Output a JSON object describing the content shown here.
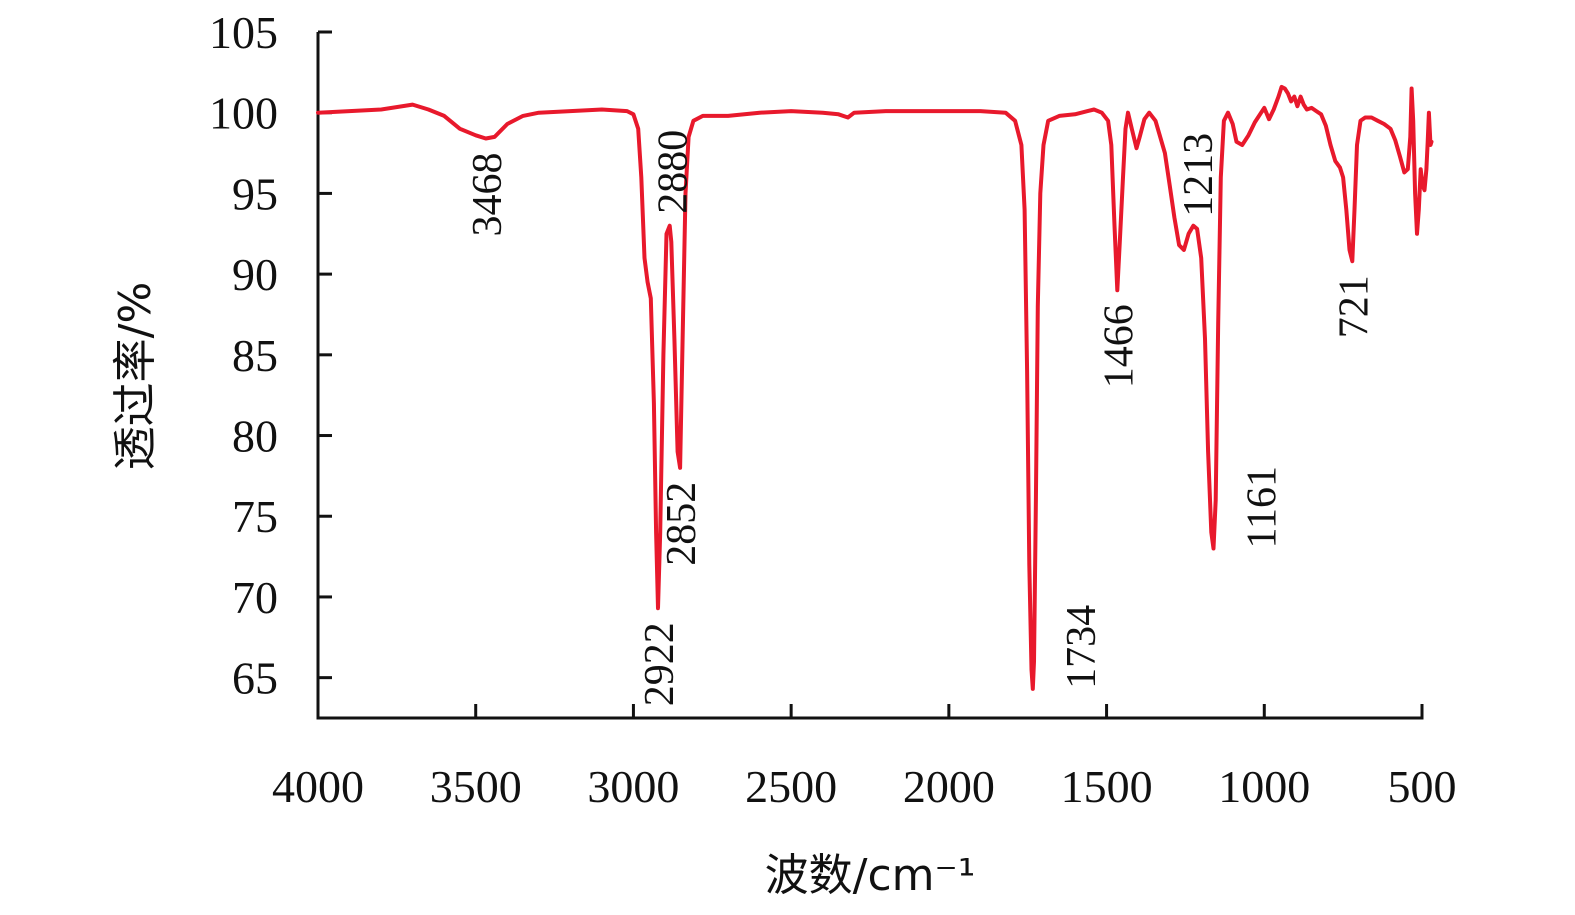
{
  "chart_data": {
    "type": "line",
    "xlabel": "波数/cm⁻¹",
    "ylabel": "透过率/%",
    "xlim": [
      4000,
      500
    ],
    "ylim": [
      62.5,
      105
    ],
    "x_reversed": true,
    "x_ticks": [
      4000,
      3500,
      3000,
      2500,
      2000,
      1500,
      1000,
      500
    ],
    "y_ticks": [
      65,
      70,
      75,
      80,
      85,
      90,
      95,
      100,
      105
    ],
    "grid": false,
    "series_color": "#e8192c",
    "series": [
      {
        "points": [
          [
            4000,
            100
          ],
          [
            3900,
            100.1
          ],
          [
            3800,
            100.2
          ],
          [
            3700,
            100.5
          ],
          [
            3650,
            100.2
          ],
          [
            3600,
            99.8
          ],
          [
            3550,
            99.0
          ],
          [
            3500,
            98.6
          ],
          [
            3468,
            98.4
          ],
          [
            3440,
            98.5
          ],
          [
            3400,
            99.3
          ],
          [
            3350,
            99.8
          ],
          [
            3300,
            100.0
          ],
          [
            3200,
            100.1
          ],
          [
            3100,
            100.2
          ],
          [
            3020,
            100.1
          ],
          [
            3000,
            99.9
          ],
          [
            2985,
            99.0
          ],
          [
            2975,
            96.0
          ],
          [
            2965,
            91.0
          ],
          [
            2955,
            89.5
          ],
          [
            2945,
            88.5
          ],
          [
            2935,
            82.0
          ],
          [
            2928,
            74.0
          ],
          [
            2922,
            69.3
          ],
          [
            2915,
            74.0
          ],
          [
            2905,
            85.0
          ],
          [
            2895,
            92.5
          ],
          [
            2885,
            93.0
          ],
          [
            2880,
            92.0
          ],
          [
            2870,
            86.0
          ],
          [
            2860,
            79.0
          ],
          [
            2852,
            78.0
          ],
          [
            2845,
            85.0
          ],
          [
            2835,
            95.0
          ],
          [
            2825,
            98.5
          ],
          [
            2810,
            99.5
          ],
          [
            2780,
            99.8
          ],
          [
            2700,
            99.8
          ],
          [
            2600,
            100.0
          ],
          [
            2500,
            100.1
          ],
          [
            2400,
            100.0
          ],
          [
            2350,
            99.9
          ],
          [
            2320,
            99.7
          ],
          [
            2300,
            100.0
          ],
          [
            2200,
            100.1
          ],
          [
            2100,
            100.1
          ],
          [
            2000,
            100.1
          ],
          [
            1900,
            100.1
          ],
          [
            1820,
            100.0
          ],
          [
            1790,
            99.5
          ],
          [
            1770,
            98.0
          ],
          [
            1760,
            94.0
          ],
          [
            1752,
            84.0
          ],
          [
            1745,
            72.0
          ],
          [
            1738,
            65.5
          ],
          [
            1734,
            64.3
          ],
          [
            1730,
            66.0
          ],
          [
            1724,
            76.0
          ],
          [
            1718,
            88.0
          ],
          [
            1710,
            95.0
          ],
          [
            1700,
            98.0
          ],
          [
            1685,
            99.5
          ],
          [
            1650,
            99.8
          ],
          [
            1600,
            99.9
          ],
          [
            1560,
            100.1
          ],
          [
            1540,
            100.2
          ],
          [
            1515,
            100.0
          ],
          [
            1495,
            99.5
          ],
          [
            1485,
            98.0
          ],
          [
            1475,
            93.0
          ],
          [
            1466,
            89.0
          ],
          [
            1458,
            92.0
          ],
          [
            1448,
            96.0
          ],
          [
            1440,
            99.0
          ],
          [
            1432,
            100.0
          ],
          [
            1420,
            99.0
          ],
          [
            1405,
            97.8
          ],
          [
            1395,
            98.5
          ],
          [
            1380,
            99.6
          ],
          [
            1365,
            100.0
          ],
          [
            1345,
            99.5
          ],
          [
            1330,
            98.5
          ],
          [
            1315,
            97.5
          ],
          [
            1300,
            95.5
          ],
          [
            1285,
            93.5
          ],
          [
            1270,
            91.8
          ],
          [
            1255,
            91.5
          ],
          [
            1240,
            92.5
          ],
          [
            1225,
            93.0
          ],
          [
            1213,
            92.8
          ],
          [
            1200,
            91.0
          ],
          [
            1188,
            86.0
          ],
          [
            1178,
            79.0
          ],
          [
            1168,
            74.0
          ],
          [
            1161,
            73.0
          ],
          [
            1154,
            76.0
          ],
          [
            1146,
            87.0
          ],
          [
            1138,
            96.0
          ],
          [
            1128,
            99.5
          ],
          [
            1115,
            100.0
          ],
          [
            1100,
            99.3
          ],
          [
            1088,
            98.2
          ],
          [
            1070,
            98.0
          ],
          [
            1050,
            98.6
          ],
          [
            1030,
            99.4
          ],
          [
            1010,
            100.0
          ],
          [
            1000,
            100.3
          ],
          [
            985,
            99.6
          ],
          [
            970,
            100.2
          ],
          [
            955,
            101.0
          ],
          [
            945,
            101.6
          ],
          [
            935,
            101.5
          ],
          [
            925,
            101.2
          ],
          [
            915,
            100.7
          ],
          [
            905,
            101.0
          ],
          [
            895,
            100.4
          ],
          [
            885,
            101.0
          ],
          [
            875,
            100.5
          ],
          [
            865,
            100.2
          ],
          [
            850,
            100.3
          ],
          [
            835,
            100.1
          ],
          [
            820,
            99.9
          ],
          [
            805,
            99.2
          ],
          [
            790,
            98.0
          ],
          [
            775,
            97.0
          ],
          [
            760,
            96.6
          ],
          [
            750,
            96.0
          ],
          [
            740,
            94.0
          ],
          [
            730,
            91.5
          ],
          [
            721,
            90.8
          ],
          [
            714,
            94.0
          ],
          [
            706,
            98.0
          ],
          [
            695,
            99.5
          ],
          [
            680,
            99.7
          ],
          [
            660,
            99.7
          ],
          [
            640,
            99.5
          ],
          [
            620,
            99.3
          ],
          [
            600,
            99.0
          ],
          [
            585,
            98.3
          ],
          [
            570,
            97.3
          ],
          [
            556,
            96.3
          ],
          [
            545,
            96.5
          ],
          [
            537,
            98.5
          ],
          [
            533,
            101.5
          ],
          [
            528,
            99.5
          ],
          [
            522,
            95.0
          ],
          [
            516,
            92.5
          ],
          [
            510,
            94.0
          ],
          [
            504,
            96.5
          ],
          [
            498,
            95.5
          ],
          [
            492,
            95.2
          ],
          [
            486,
            96.5
          ],
          [
            482,
            98.2
          ],
          [
            478,
            100.0
          ],
          [
            473,
            98.0
          ],
          [
            470,
            98.2
          ]
        ]
      }
    ],
    "annotations": [
      {
        "text": "3468",
        "x": 3468,
        "y": 98.4,
        "position": "below"
      },
      {
        "text": "2880",
        "x": 2880,
        "y": 93.0,
        "position": "above"
      },
      {
        "text": "2922",
        "x": 2922,
        "y": 69.3,
        "position": "below"
      },
      {
        "text": "2852",
        "x": 2852,
        "y": 78.0,
        "position": "below"
      },
      {
        "text": "1734",
        "x": 1734,
        "y": 64.3,
        "position": "right"
      },
      {
        "text": "1466",
        "x": 1466,
        "y": 89.0,
        "position": "below"
      },
      {
        "text": "1213",
        "x": 1213,
        "y": 92.8,
        "position": "above"
      },
      {
        "text": "1161",
        "x": 1161,
        "y": 73.0,
        "position": "right"
      },
      {
        "text": "721",
        "x": 721,
        "y": 90.8,
        "position": "below"
      }
    ]
  }
}
